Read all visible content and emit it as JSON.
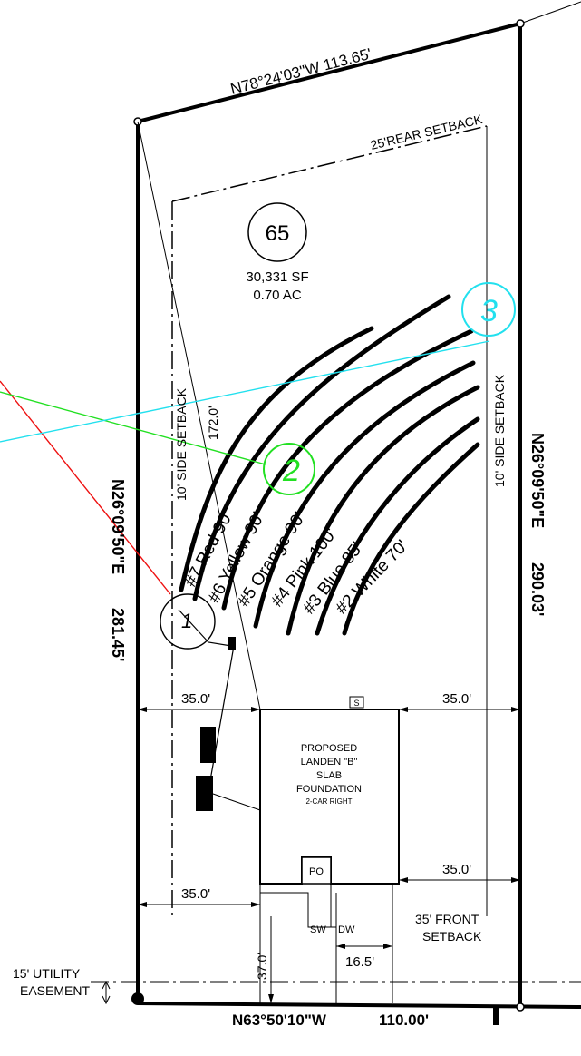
{
  "lot": {
    "number": "65",
    "area_sf": "30,331 SF",
    "area_ac": "0.70 AC"
  },
  "bearings": {
    "rear": "N78°24'03\"W 113.65'",
    "left_bearing": "N26°09'50\"E",
    "left_distance": "281.45'",
    "right_bearing": "N26°09'50\"E",
    "right_distance": "290.03'",
    "front_bearing": "N63°50'10\"W",
    "front_distance": "110.00'"
  },
  "setbacks": {
    "rear": "25'REAR SETBACK",
    "side_left": "10' SIDE SETBACK",
    "side_right": "10' SIDE SETBACK",
    "front_line1": "35' FRONT",
    "front_line2": "SETBACK"
  },
  "dimensions": {
    "top_left": "35.0'",
    "top_right": "35.0'",
    "bottom_left": "35.0'",
    "bottom_right": "35.0'",
    "sidewalk_offset": "16.5'",
    "front_depth": "37.0'",
    "diagonal": "172.0'"
  },
  "house": {
    "line1": "PROPOSED",
    "line2": "LANDEN \"B\"",
    "line3": "SLAB",
    "line4": "FOUNDATION",
    "line5": "2-CAR RIGHT",
    "porch": "PO",
    "s_box": "S",
    "sw": "SW",
    "dw": "DW"
  },
  "easement": {
    "line1": "15' UTILITY",
    "line2": "EASEMENT"
  },
  "markers": {
    "m1": "1",
    "m2": "2",
    "m3": "3"
  },
  "rows": [
    {
      "label": "#7 Red 90'"
    },
    {
      "label": "#6 Yellow 90'"
    },
    {
      "label": "#5 Orange 90'"
    },
    {
      "label": "#4 Pink 100'"
    },
    {
      "label": "#3 Blue 85'"
    },
    {
      "label": "#2 White 70'"
    }
  ],
  "colors": {
    "line_black": "#000000",
    "marker_green": "#22e022",
    "marker_cyan": "#22e0ee",
    "marker_red": "#ee1111"
  }
}
